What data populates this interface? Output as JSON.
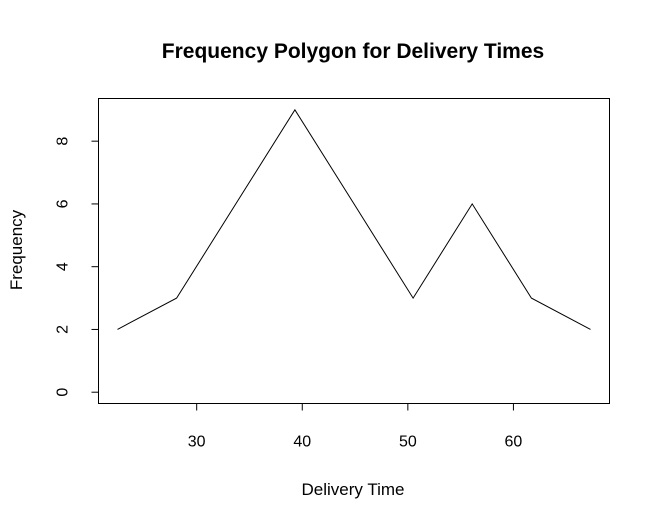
{
  "chart_data": {
    "type": "line",
    "title": "Frequency Polygon for Delivery Times",
    "xlabel": "Delivery Time",
    "ylabel": "Frequency",
    "x": [
      22.5,
      28.1,
      33.7,
      39.3,
      44.9,
      50.5,
      56.1,
      61.7,
      67.3
    ],
    "series": [
      {
        "values": [
          2,
          3,
          6,
          9,
          6,
          3,
          6,
          3,
          2
        ]
      }
    ],
    "xlim": [
      20.7,
      69.1
    ],
    "ylim": [
      -0.36,
      9.36
    ],
    "xticks": [
      30,
      40,
      50,
      60
    ],
    "yticks": [
      0,
      2,
      4,
      6,
      8
    ],
    "grid": false,
    "line_color": "#000000"
  }
}
